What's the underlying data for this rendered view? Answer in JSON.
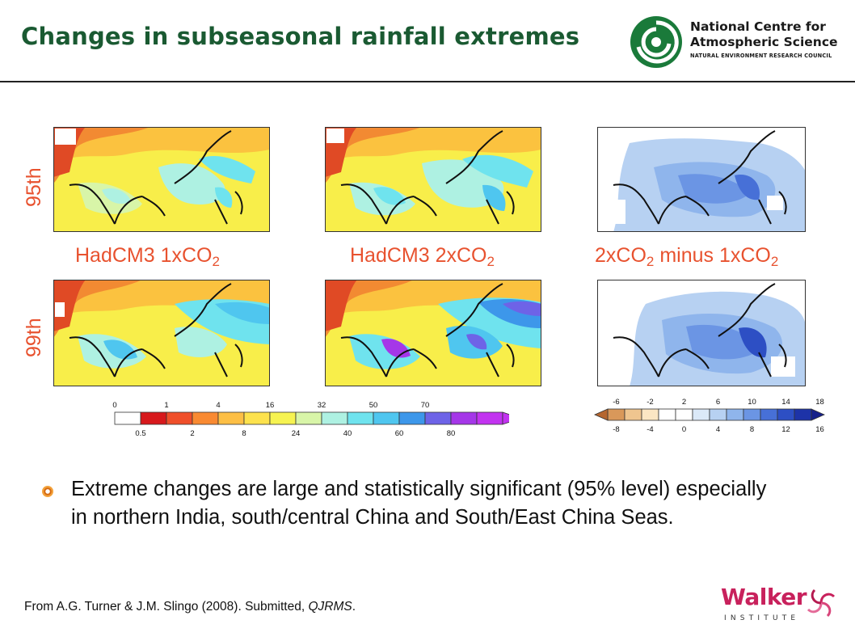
{
  "header": {
    "title": "Changes in subseasonal rainfall extremes",
    "logo": {
      "line1": "National Centre for",
      "line2": "Atmospheric Science",
      "line3": "NATURAL ENVIRONMENT RESEARCH COUNCIL",
      "color": "#1a7a3a"
    }
  },
  "figure": {
    "row_labels": [
      "95th",
      "99th"
    ],
    "column_labels": [
      {
        "main": "HadCM3 1xCO",
        "sub": "2",
        "tail": ""
      },
      {
        "main": "HadCM3 2xCO",
        "sub": "2",
        "tail": ""
      },
      {
        "main": "2xCO",
        "sub": "2",
        "tail": " minus 1xCO",
        "sub2": "2"
      }
    ],
    "left_colorbar": {
      "top_ticks": [
        "0",
        "1",
        "4",
        "16",
        "32",
        "50",
        "70"
      ],
      "bottom_ticks": [
        "0.5",
        "2",
        "8",
        "24",
        "40",
        "60",
        "80"
      ],
      "colors": [
        "#ffffff",
        "#d7191c",
        "#ef4f2a",
        "#f98a32",
        "#fdbf45",
        "#fde24d",
        "#f6f351",
        "#d8f5a8",
        "#aef1e2",
        "#6fe3ee",
        "#4fc6ef",
        "#3d97ea",
        "#6e63e7",
        "#a537e8",
        "#c233f0"
      ]
    },
    "right_colorbar": {
      "top_ticks": [
        "-6",
        "-2",
        "2",
        "6",
        "10",
        "14",
        "18"
      ],
      "bottom_ticks": [
        "-8",
        "-4",
        "0",
        "4",
        "8",
        "12",
        "16"
      ],
      "colors": [
        "#b5662f",
        "#d9985a",
        "#efc58f",
        "#fbe6c3",
        "#ffffff",
        "#ffffff",
        "#dbe9f8",
        "#b7d1f2",
        "#8fb5ec",
        "#6b95e4",
        "#4770d7",
        "#2d4fc4",
        "#1d33a8",
        "#16208a"
      ]
    }
  },
  "bullet": {
    "text": "Extreme changes are large and statistically significant (95% level) especially in northern India, south/central China and South/East China Seas."
  },
  "footer": {
    "source_prefix": "From A.G. Turner & J.M. Slingo (2008). Submitted, ",
    "source_journal": "QJRMS",
    "source_suffix": ".",
    "logo_word": "Walker",
    "logo_sub": "INSTITUTE"
  }
}
